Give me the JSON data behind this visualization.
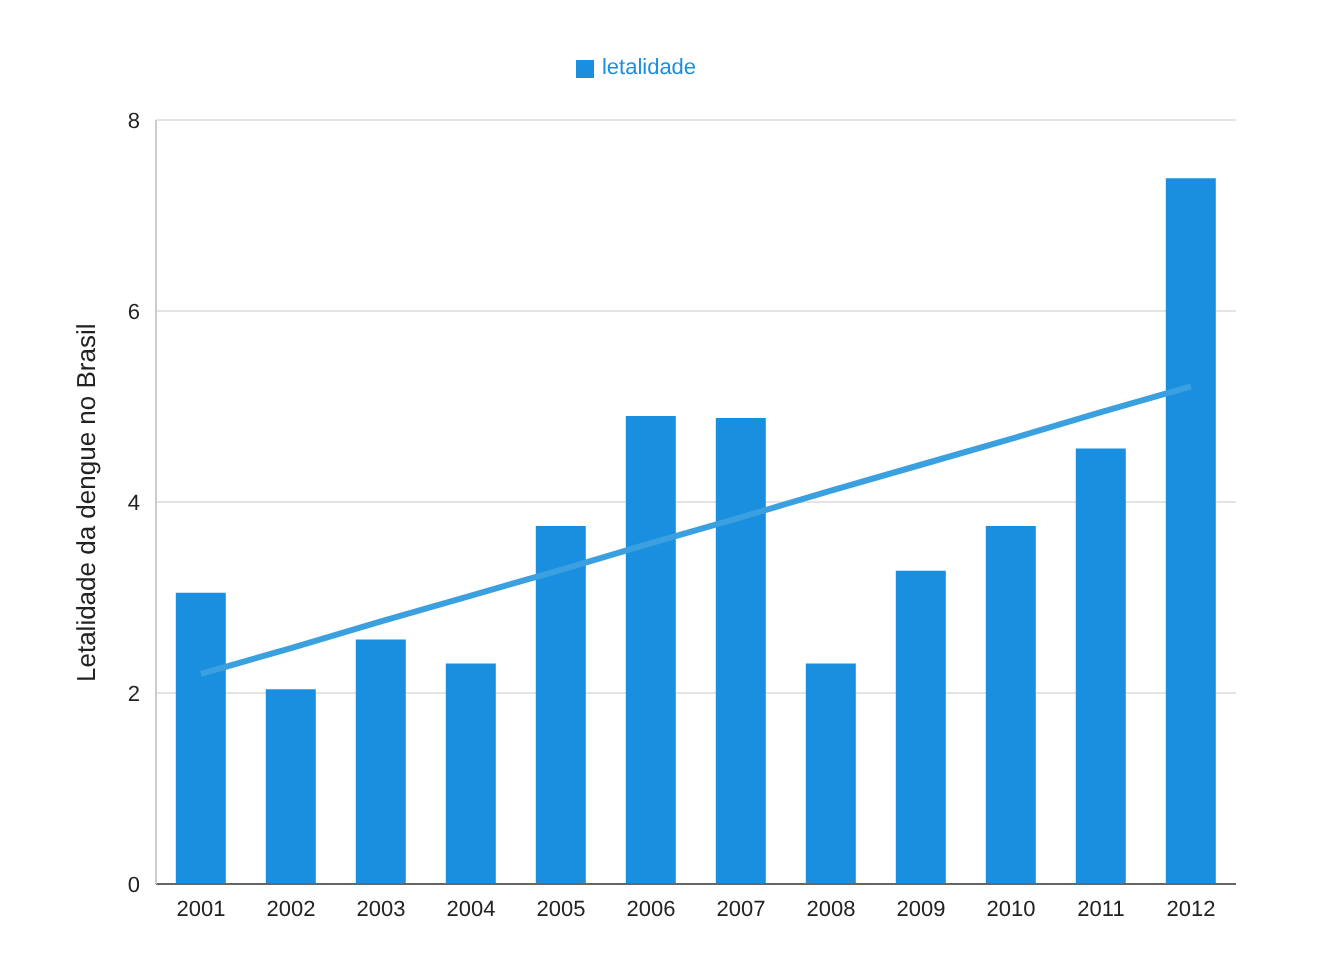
{
  "chart_data": {
    "type": "bar",
    "ylabel": "Letalidade da dengue no Brasil",
    "categories": [
      "2001",
      "2002",
      "2003",
      "2004",
      "2005",
      "2006",
      "2007",
      "2008",
      "2009",
      "2010",
      "2011",
      "2012"
    ],
    "series": [
      {
        "name": "letalidade",
        "color": "#1a8fe0",
        "values": [
          3.05,
          2.04,
          2.56,
          2.31,
          3.75,
          4.9,
          4.88,
          2.31,
          3.28,
          3.75,
          4.56,
          7.39
        ]
      },
      {
        "type": "line",
        "color": "#3aa0e0",
        "values": [
          2.2,
          2.47,
          2.75,
          3.02,
          3.29,
          3.57,
          3.84,
          4.12,
          4.39,
          4.66,
          4.94,
          5.21
        ]
      }
    ],
    "ylim": [
      0,
      8
    ],
    "yticks": [
      0,
      2,
      4,
      6,
      8
    ],
    "grid": "y",
    "legend": "top",
    "marker": "none"
  }
}
